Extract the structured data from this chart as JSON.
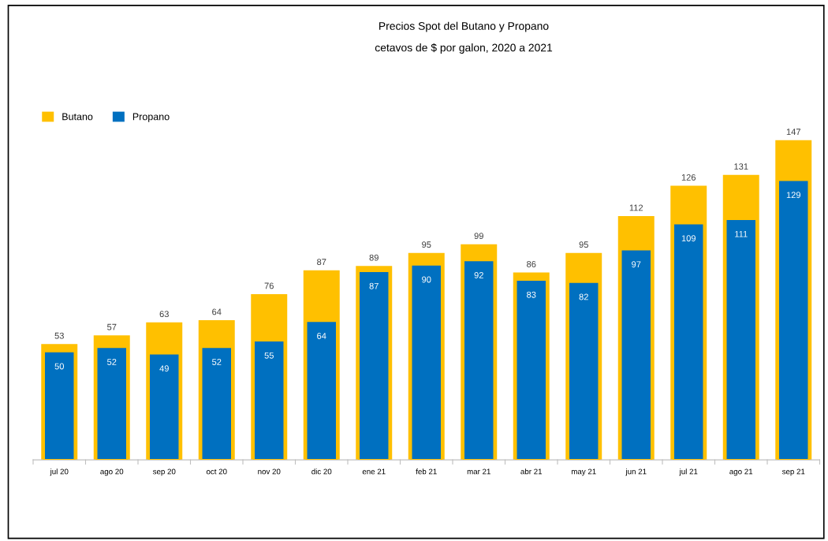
{
  "chart_data": {
    "type": "bar",
    "title": "Precios Spot del Butano y Propano",
    "subtitle": "cetavos de $ por galon, 2020 a 2021",
    "categories": [
      "jul 20",
      "ago 20",
      "sep 20",
      "oct 20",
      "nov 20",
      "dic 20",
      "ene 21",
      "feb 21",
      "mar 21",
      "abr 21",
      "may 21",
      "jun 21",
      "jul 21",
      "ago 21",
      "sep 21"
    ],
    "series": [
      {
        "name": "Butano",
        "color": "#ffc000",
        "values": [
          53,
          57,
          63,
          64,
          76,
          87,
          89,
          95,
          99,
          86,
          95,
          112,
          126,
          131,
          147
        ]
      },
      {
        "name": "Propano",
        "color": "#0070c0",
        "values": [
          50,
          52,
          49,
          52,
          55,
          64,
          87,
          90,
          92,
          83,
          82,
          97,
          109,
          111,
          129
        ]
      }
    ],
    "data_labels": true,
    "legend": "top left",
    "grid": false
  }
}
